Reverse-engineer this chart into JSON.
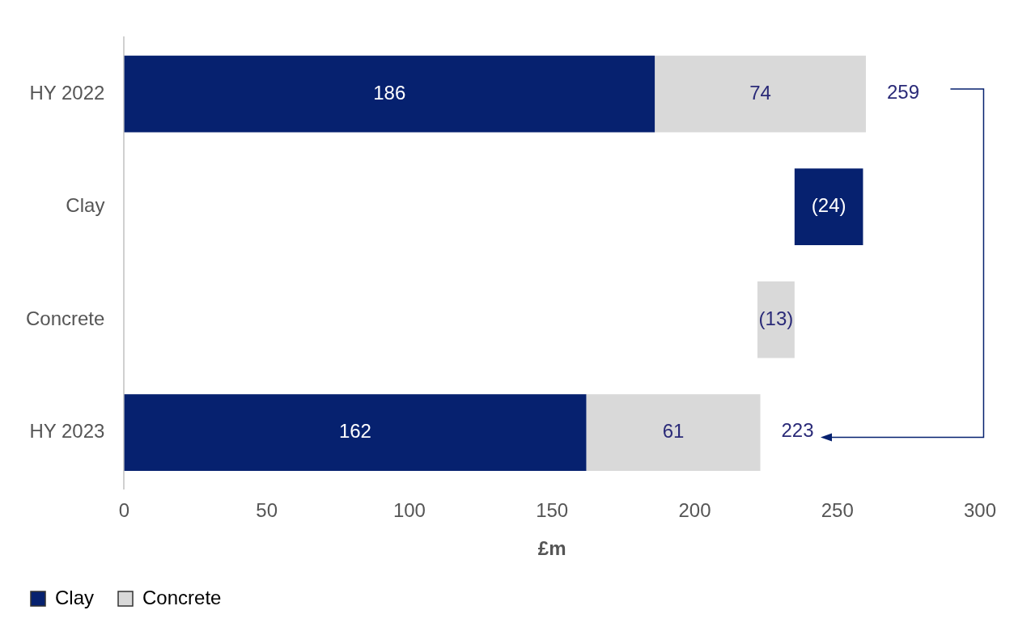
{
  "chart_data": {
    "type": "bar",
    "orientation": "horizontal",
    "categories": [
      "HY 2022",
      "Clay",
      "Concrete",
      "HY 2023"
    ],
    "xlabel": "£m",
    "xlim": [
      0,
      300
    ],
    "xticks": [
      0,
      50,
      100,
      150,
      200,
      250,
      300
    ],
    "grid": false,
    "legend": "bottom left",
    "series": [
      {
        "name": "Clay",
        "color": "#06216f",
        "values": [
          186,
          -24,
          null,
          162
        ],
        "base": [
          0,
          259,
          null,
          0
        ],
        "value_labels": [
          "186",
          "(24)",
          null,
          "162"
        ]
      },
      {
        "name": "Concrete",
        "color": "#d9d9d9",
        "values": [
          74,
          null,
          -13,
          61
        ],
        "base": [
          186,
          null,
          235,
          162
        ],
        "value_labels": [
          "74",
          null,
          "(13)",
          "61"
        ]
      }
    ],
    "totals": [
      "259",
      null,
      null,
      "223"
    ]
  }
}
